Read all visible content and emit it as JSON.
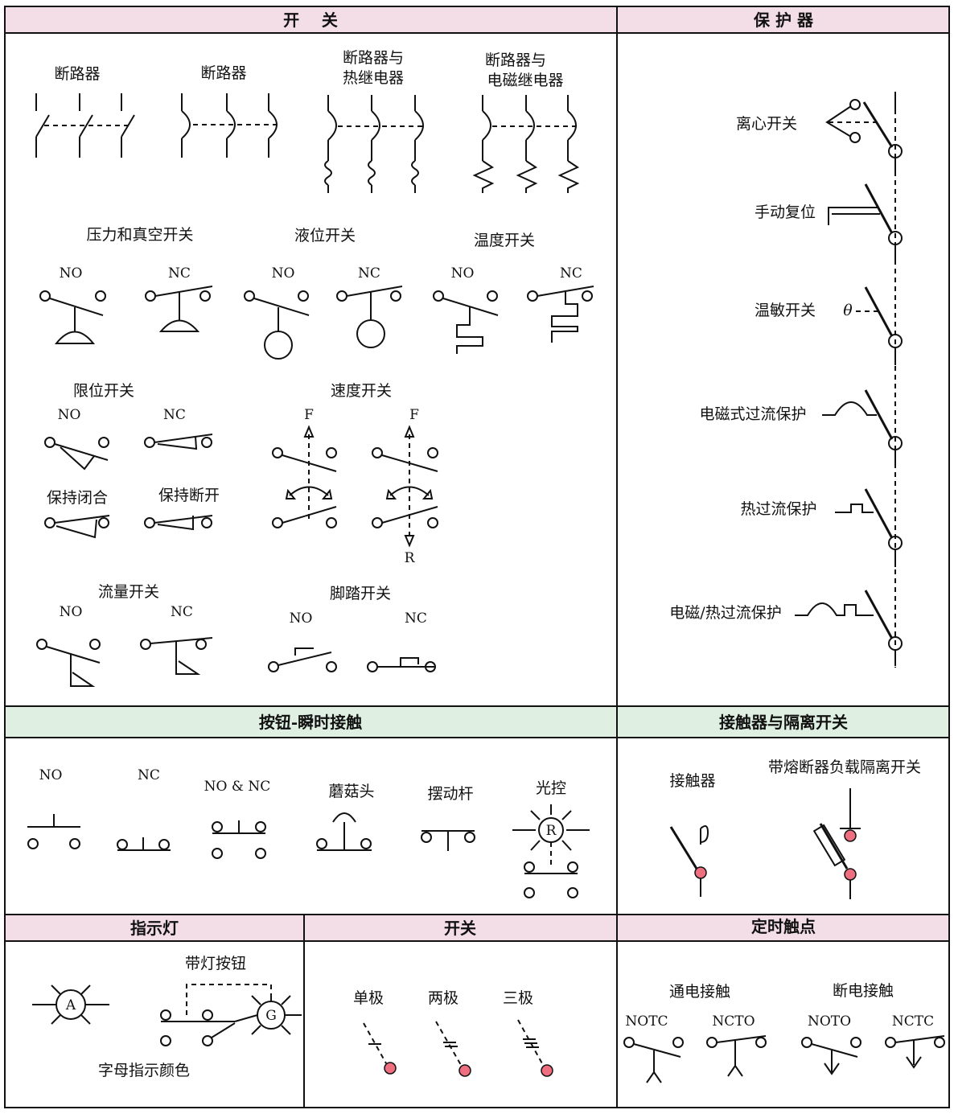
{
  "colors": {
    "pink_header": "#f3dde6",
    "green_header": "#dff0e2",
    "node": "#ef6f80",
    "line": "#111111"
  },
  "sections": {
    "switches": "开    关",
    "protectors": "保 护 器",
    "pushbuttons": "按钮-瞬时接触",
    "contactors": "接触器与隔离开关",
    "pilot_lights": "指示灯",
    "toggle": "开关",
    "timed": "定时触点"
  },
  "switches": {
    "breaker1": "断路器",
    "breaker2": "断路器",
    "breaker_thermal_l1": "断路器与",
    "breaker_thermal_l2": "热继电器",
    "breaker_magnetic_l1": "断路器与",
    "breaker_magnetic_l2": "电磁继电器",
    "pressure": "压力和真空开关",
    "liquid": "液位开关",
    "temp": "温度开关",
    "limit": "限位开关",
    "held_closed": "保持闭合",
    "held_open": "保持断开",
    "speed": "速度开关",
    "flow": "流量开关",
    "foot": "脚踏开关",
    "no": "NO",
    "nc": "NC",
    "f": "F",
    "r": "R"
  },
  "protectors": {
    "centrifugal": "离心开关",
    "manual_reset": "手动复位",
    "thermostat": "温敏开关",
    "magnetic_overload": "电磁式过流保护",
    "thermal_overload": "热过流保护",
    "mag_thermal_overload": "电磁/热过流保护",
    "theta": "θ"
  },
  "pushbuttons": {
    "no": "NO",
    "nc": "NC",
    "no_nc": "NO & NC",
    "mushroom": "蘑菇头",
    "wobble": "摆动杆",
    "photo": "光控",
    "r": "R"
  },
  "contactors": {
    "contactor": "接触器",
    "fused_disconnect": "带熔断器负载隔离开关"
  },
  "pilot_lights": {
    "lighted_button": "带灯按钮",
    "letter_color": "字母指示颜色",
    "a": "A",
    "g": "G"
  },
  "toggle": {
    "single": "单极",
    "double": "两极",
    "triple": "三极"
  },
  "timed": {
    "on_delay": "通电接触",
    "off_delay": "断电接触",
    "notc": "NOTC",
    "ncto": "NCTO",
    "noto": "NOTO",
    "nctc": "NCTC"
  }
}
